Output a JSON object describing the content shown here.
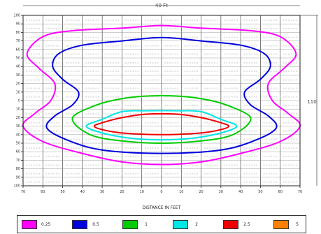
{
  "chart_data": {
    "type": "contour",
    "title": "",
    "xlabel": "DISTANCE IN FEET",
    "ylabel": "",
    "width_dimension_label": "40 Ft",
    "height_dimension_label": "110",
    "xlim": [
      -70,
      70
    ],
    "ylim": [
      -100,
      100
    ],
    "xticks": [
      "70",
      "60",
      "50",
      "40",
      "30",
      "20",
      "10",
      "0",
      "10",
      "20",
      "30",
      "40",
      "50",
      "60",
      "70"
    ],
    "yticks": [
      "100",
      "90",
      "80",
      "70",
      "60",
      "50",
      "40",
      "30",
      "20",
      "10",
      "0",
      "10",
      "20",
      "30",
      "40",
      "50",
      "60",
      "70",
      "80",
      "90",
      "100"
    ],
    "grid": true,
    "legend_position": "bottom",
    "grid_cell_value": "0.0",
    "contours": [
      {
        "label": "0.25",
        "color": "#ff00ff",
        "points": [
          [
            -20,
            85
          ],
          [
            0,
            88
          ],
          [
            20,
            85
          ],
          [
            45,
            82
          ],
          [
            60,
            75
          ],
          [
            68,
            55
          ],
          [
            62,
            38
          ],
          [
            54,
            20
          ],
          [
            56,
            0
          ],
          [
            64,
            -15
          ],
          [
            70,
            -30
          ],
          [
            60,
            -48
          ],
          [
            40,
            -62
          ],
          [
            20,
            -72
          ],
          [
            0,
            -75
          ],
          [
            -20,
            -72
          ],
          [
            -40,
            -62
          ],
          [
            -60,
            -48
          ],
          [
            -70,
            -30
          ],
          [
            -64,
            -15
          ],
          [
            -56,
            0
          ],
          [
            -54,
            20
          ],
          [
            -62,
            38
          ],
          [
            -68,
            55
          ],
          [
            -60,
            75
          ],
          [
            -45,
            82
          ]
        ]
      },
      {
        "label": "0.5",
        "color": "#0000dd",
        "points": [
          [
            -20,
            70
          ],
          [
            0,
            74
          ],
          [
            20,
            70
          ],
          [
            40,
            65
          ],
          [
            52,
            55
          ],
          [
            55,
            40
          ],
          [
            50,
            25
          ],
          [
            42,
            10
          ],
          [
            45,
            -5
          ],
          [
            54,
            -18
          ],
          [
            58,
            -32
          ],
          [
            48,
            -46
          ],
          [
            30,
            -58
          ],
          [
            0,
            -62
          ],
          [
            -30,
            -58
          ],
          [
            -48,
            -46
          ],
          [
            -58,
            -32
          ],
          [
            -54,
            -18
          ],
          [
            -45,
            -5
          ],
          [
            -42,
            10
          ],
          [
            -50,
            25
          ],
          [
            -55,
            40
          ],
          [
            -52,
            55
          ],
          [
            -40,
            65
          ]
        ]
      },
      {
        "label": "1",
        "color": "#00cc00",
        "points": [
          [
            -25,
            0
          ],
          [
            -10,
            5
          ],
          [
            10,
            5
          ],
          [
            25,
            0
          ],
          [
            36,
            -8
          ],
          [
            45,
            -20
          ],
          [
            40,
            -35
          ],
          [
            28,
            -45
          ],
          [
            0,
            -50
          ],
          [
            -28,
            -45
          ],
          [
            -40,
            -35
          ],
          [
            -45,
            -20
          ],
          [
            -36,
            -8
          ]
        ]
      },
      {
        "label": "2",
        "color": "#00e5e5",
        "points": [
          [
            -20,
            -13
          ],
          [
            -8,
            -12
          ],
          [
            8,
            -12
          ],
          [
            20,
            -13
          ],
          [
            30,
            -22
          ],
          [
            38,
            -30
          ],
          [
            30,
            -38
          ],
          [
            16,
            -44
          ],
          [
            0,
            -46
          ],
          [
            -16,
            -44
          ],
          [
            -30,
            -38
          ],
          [
            -38,
            -30
          ],
          [
            -30,
            -22
          ]
        ]
      },
      {
        "label": "2.5",
        "color": "#ee0000",
        "points": [
          [
            -20,
            -20
          ],
          [
            -8,
            -16
          ],
          [
            8,
            -16
          ],
          [
            20,
            -20
          ],
          [
            30,
            -26
          ],
          [
            34,
            -30
          ],
          [
            30,
            -34
          ],
          [
            20,
            -38
          ],
          [
            0,
            -40
          ],
          [
            -20,
            -38
          ],
          [
            -30,
            -34
          ],
          [
            -34,
            -30
          ],
          [
            -30,
            -26
          ]
        ]
      }
    ],
    "legend": [
      {
        "label": "0.25",
        "color": "#ff00ff"
      },
      {
        "label": "0.5",
        "color": "#0000dd"
      },
      {
        "label": "1",
        "color": "#00cc00"
      },
      {
        "label": "2",
        "color": "#00e5e5"
      },
      {
        "label": "2.5",
        "color": "#ee0000"
      },
      {
        "label": "5",
        "color": "#ff8000"
      }
    ]
  }
}
